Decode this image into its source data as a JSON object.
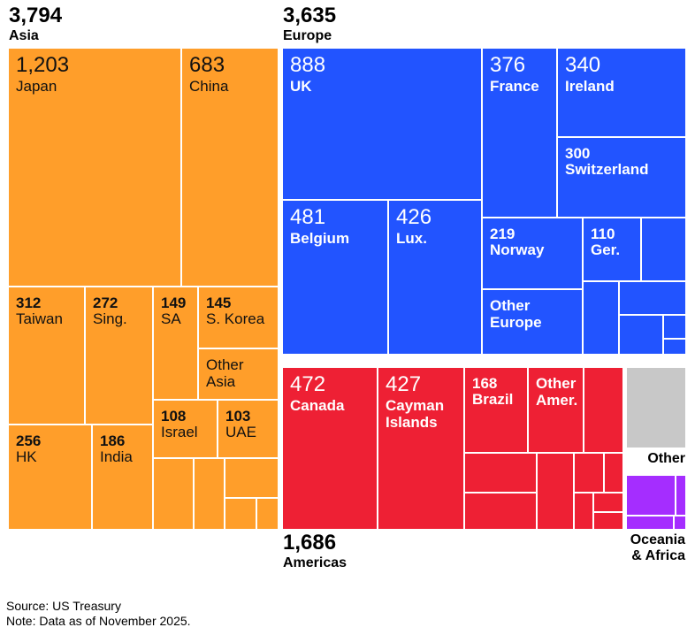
{
  "chart_data": {
    "type": "treemap",
    "title": "",
    "units": "",
    "colors": {
      "Asia": "#ff9e2a",
      "Europe": "#2254ff",
      "Americas": "#ee2034",
      "Other": "#c8c8c8",
      "Oceania & Africa": "#a52dff"
    },
    "groups": [
      {
        "name": "Asia",
        "total": "3,794",
        "items": [
          {
            "label": "Japan",
            "value": "1,203"
          },
          {
            "label": "China",
            "value": "683"
          },
          {
            "label": "Taiwan",
            "value": "312"
          },
          {
            "label": "Sing.",
            "value": "272"
          },
          {
            "label": "SA",
            "value": "149"
          },
          {
            "label": "S. Korea",
            "value": "145"
          },
          {
            "label": "Other Asia",
            "value": ""
          },
          {
            "label": "Israel",
            "value": "108"
          },
          {
            "label": "UAE",
            "value": "103"
          },
          {
            "label": "HK",
            "value": "256"
          },
          {
            "label": "India",
            "value": "186"
          }
        ]
      },
      {
        "name": "Europe",
        "total": "3,635",
        "items": [
          {
            "label": "UK",
            "value": "888"
          },
          {
            "label": "France",
            "value": "376"
          },
          {
            "label": "Ireland",
            "value": "340"
          },
          {
            "label": "Switzerland",
            "value": "300"
          },
          {
            "label": "Belgium",
            "value": "481"
          },
          {
            "label": "Lux.",
            "value": "426"
          },
          {
            "label": "Norway",
            "value": "219"
          },
          {
            "label": "Ger.",
            "value": "110"
          },
          {
            "label": "Other Europe",
            "value": ""
          }
        ]
      },
      {
        "name": "Americas",
        "total": "1,686",
        "items": [
          {
            "label": "Canada",
            "value": "472"
          },
          {
            "label": "Cayman Islands",
            "value": "427"
          },
          {
            "label": "Brazil",
            "value": "168"
          },
          {
            "label": "Other Amer.",
            "value": ""
          }
        ]
      },
      {
        "name": "Other",
        "total": "",
        "items": []
      },
      {
        "name": "Oceania & Africa",
        "total": "",
        "items": []
      }
    ]
  },
  "footer": {
    "source": "Source: US Treasury",
    "note": "Note: Data as of November 2025."
  }
}
